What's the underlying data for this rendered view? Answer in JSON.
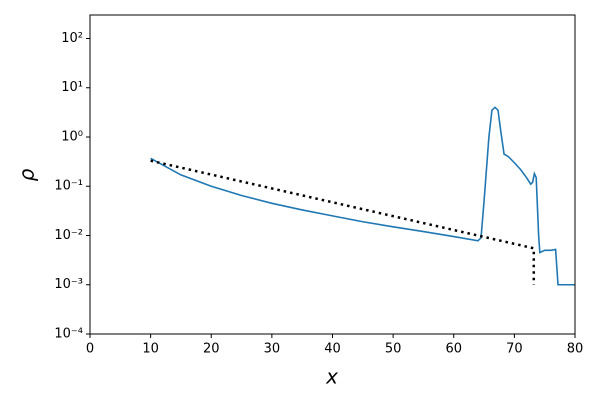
{
  "chart_data": {
    "type": "line",
    "x_label": "x",
    "y_label": "ρ",
    "log_y": true,
    "xlim": [
      0,
      80
    ],
    "xticks": [
      0,
      10,
      20,
      30,
      40,
      50,
      60,
      70,
      80
    ],
    "ylim": [
      0.0001,
      300
    ],
    "yticks": [
      {
        "value": 0.0001,
        "label": "10⁻⁴"
      },
      {
        "value": 0.001,
        "label": "10⁻³"
      },
      {
        "value": 0.01,
        "label": "10⁻²"
      },
      {
        "value": 0.1,
        "label": "10⁻¹"
      },
      {
        "value": 1,
        "label": "10⁰"
      },
      {
        "value": 10,
        "label": "10¹"
      },
      {
        "value": 100,
        "label": "10²"
      }
    ],
    "series": [
      {
        "color": "#1f77b4",
        "style": "solid",
        "x": [
          10,
          15,
          20,
          25,
          30,
          35,
          40,
          45,
          50,
          55,
          60,
          64,
          64.5,
          65,
          65.8,
          66.3,
          66.8,
          67.3,
          67.8,
          68.3,
          69,
          70,
          71,
          72,
          72.7,
          73,
          73.3,
          73.6,
          74,
          74.2,
          75,
          76,
          76.8,
          77.2,
          80
        ],
        "values": [
          0.37,
          0.17,
          0.1,
          0.065,
          0.045,
          0.033,
          0.025,
          0.019,
          0.015,
          0.012,
          0.0095,
          0.0078,
          0.009,
          0.05,
          1,
          3.5,
          4,
          3.5,
          1.2,
          0.45,
          0.4,
          0.3,
          0.22,
          0.15,
          0.11,
          0.12,
          0.18,
          0.15,
          0.01,
          0.0045,
          0.005,
          0.005,
          0.0052,
          0.001,
          0.001
        ]
      },
      {
        "color": "#000000",
        "style": "dotted",
        "x": [
          10,
          73.2,
          73.2
        ],
        "values": [
          0.33,
          0.0055,
          0.001
        ]
      }
    ]
  }
}
